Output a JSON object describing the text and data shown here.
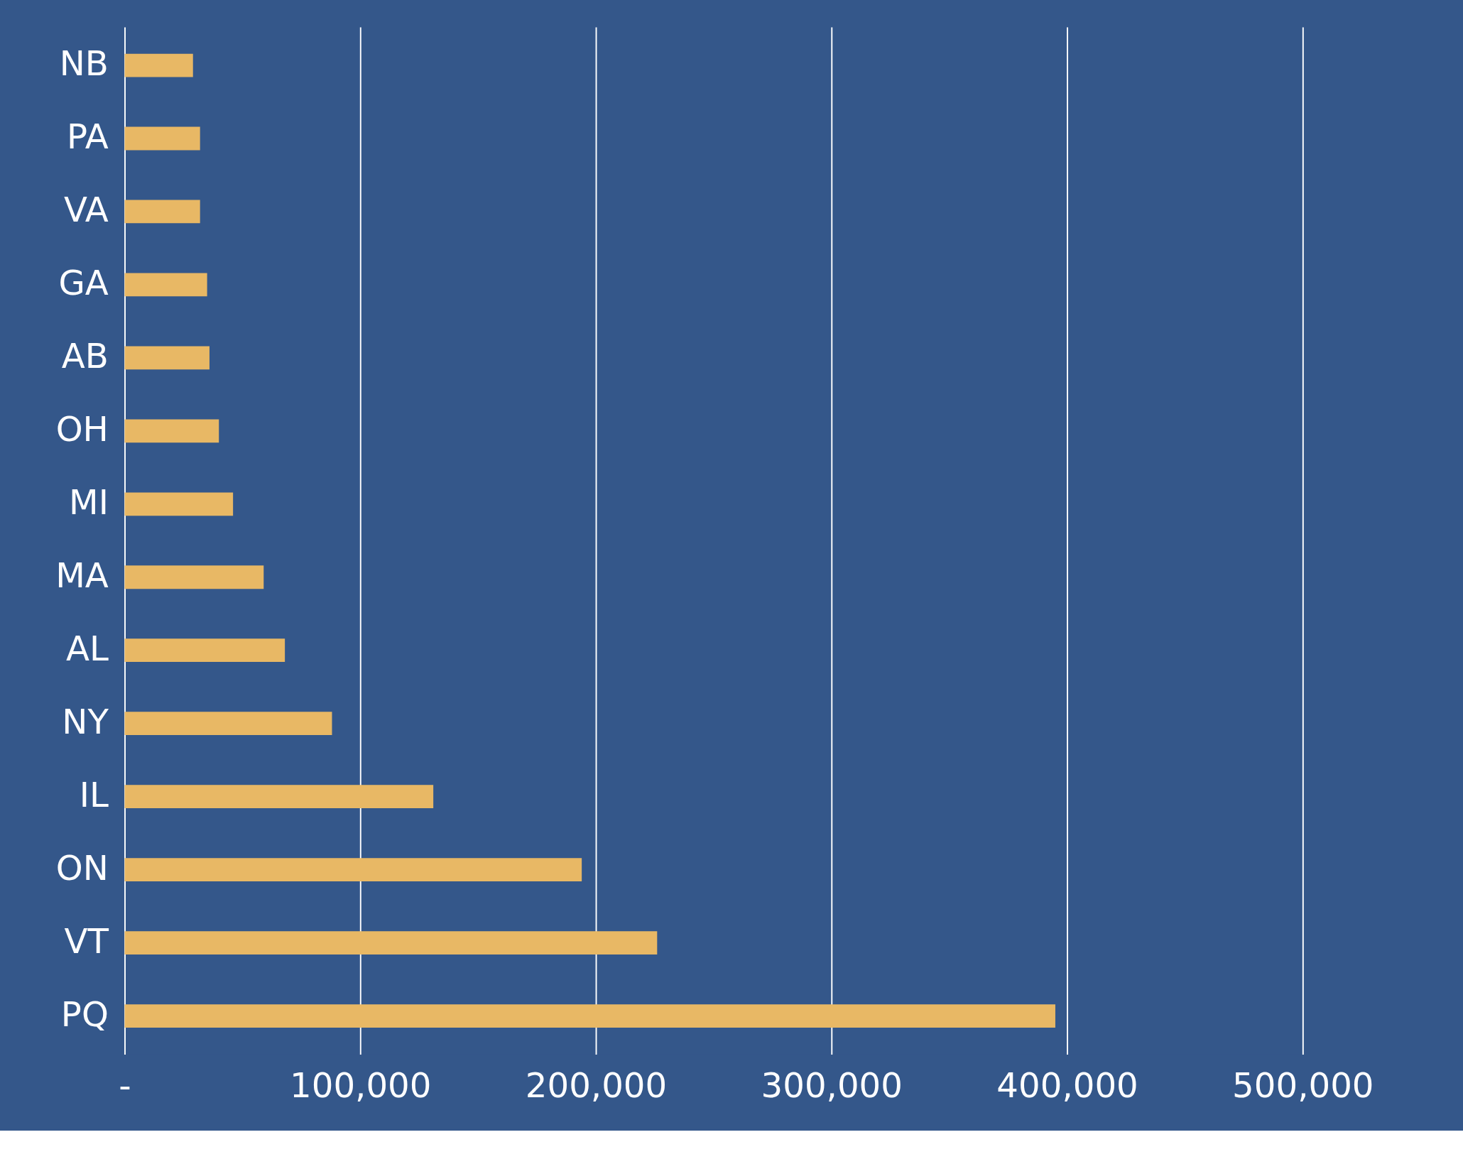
{
  "chart_data": {
    "type": "bar",
    "orientation": "horizontal",
    "categories": [
      "NB",
      "PA",
      "VA",
      "GA",
      "AB",
      "OH",
      "MI",
      "MA",
      "AL",
      "NY",
      "IL",
      "ON",
      "VT",
      "PQ"
    ],
    "values": [
      29000,
      32000,
      32000,
      35000,
      36000,
      40000,
      46000,
      59000,
      68000,
      88000,
      131000,
      194000,
      226000,
      395000
    ],
    "color": "#e8b865",
    "xlim": [
      0,
      500000
    ],
    "xticks": [
      {
        "value": 0,
        "label": "-"
      },
      {
        "value": 100000,
        "label": "100,000"
      },
      {
        "value": 200000,
        "label": "200,000"
      },
      {
        "value": 300000,
        "label": "300,000"
      },
      {
        "value": 400000,
        "label": "400,000"
      },
      {
        "value": 500000,
        "label": "500,000"
      }
    ],
    "grid": "x"
  }
}
